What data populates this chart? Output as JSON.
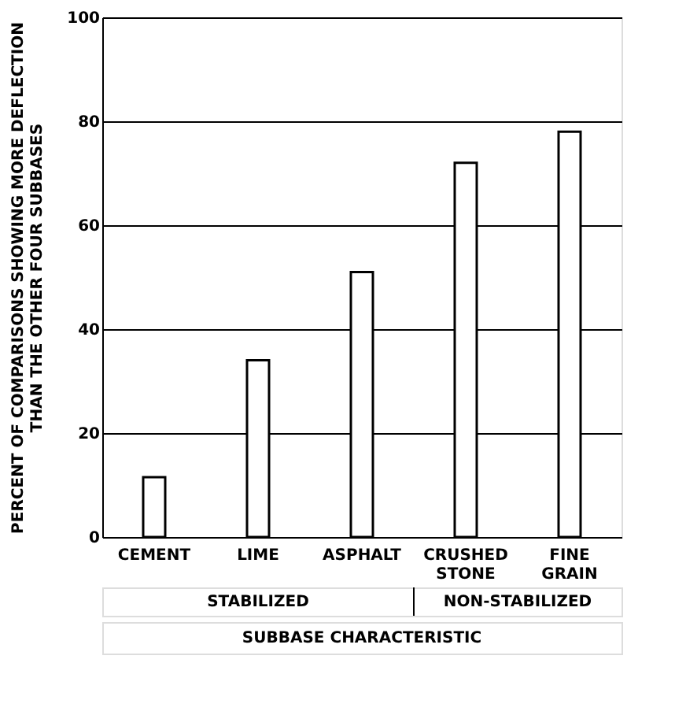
{
  "chart_data": {
    "type": "bar",
    "xlabel": "SUBBASE CHARACTERISTIC",
    "ylabel": "PERCENT OF COMPARISONS SHOWING MORE DEFLECTION THAN THE OTHER FOUR SUBBASES",
    "categories": [
      "CEMENT",
      "LIME",
      "ASPHALT",
      "CRUSHED STONE",
      "FINE GRAIN"
    ],
    "values": [
      11.5,
      34,
      51,
      72,
      78
    ],
    "color": "#ffffff",
    "ylim": [
      0,
      100
    ],
    "yticks": [
      0,
      20,
      40,
      60,
      80,
      100
    ],
    "grid": "y",
    "annotations": [
      "STABILIZED",
      "NON-STABILIZED"
    ]
  }
}
